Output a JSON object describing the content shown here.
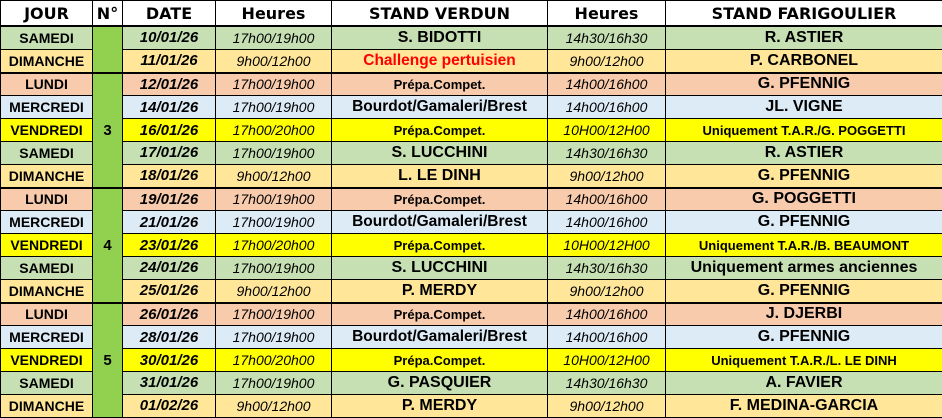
{
  "headers": [
    "JOUR",
    "N°",
    "DATE",
    "Heures",
    "STAND VERDUN",
    "Heures",
    "STAND FARIGOULIER"
  ],
  "colors": {
    "SAMEDI": "#c6e0b4",
    "DIMANCHE": "#ffe699",
    "LUNDI": "#f8cbad",
    "MERCREDI": "#ddebf7",
    "VENDREDI": "#ffff00",
    "week_cell": "#92d050",
    "highlight_text": "#ff0000"
  },
  "weeks": [
    {
      "number": "",
      "rows": 2
    },
    {
      "number": "3",
      "rows": 5
    },
    {
      "number": "4",
      "rows": 5
    },
    {
      "number": "5",
      "rows": 5
    }
  ],
  "rows": [
    {
      "jour": "SAMEDI",
      "date": "10/01/26",
      "h1": "17h00/19h00",
      "verdun": "S. BIDOTTI",
      "h2": "14h30/16h30",
      "farigoulier": "R. ASTIER"
    },
    {
      "jour": "DIMANCHE",
      "date": "11/01/26",
      "h1": "9h00/12h00",
      "verdun": "Challenge pertuisien",
      "verdun_red": true,
      "h2": "9h00/12h00",
      "farigoulier": "P. CARBONEL"
    },
    {
      "jour": "LUNDI",
      "date": "12/01/26",
      "h1": "17h00/19h00",
      "verdun": "Prépa.Compet.",
      "h2": "14h00/16h00",
      "farigoulier": "G. PFENNIG"
    },
    {
      "jour": "MERCREDI",
      "date": "14/01/26",
      "h1": "17h00/19h00",
      "verdun": "Bourdot/Gamaleri/Brest",
      "h2": "14h00/16h00",
      "farigoulier": "JL. VIGNE"
    },
    {
      "jour": "VENDREDI",
      "date": "16/01/26",
      "h1": "17h00/20h00",
      "verdun": "Prépa.Compet.",
      "h2": "10H00/12H00",
      "farigoulier": "Uniquement T.A.R./G. POGGETTI"
    },
    {
      "jour": "SAMEDI",
      "date": "17/01/26",
      "h1": "17h00/19h00",
      "verdun": "S. LUCCHINI",
      "h2": "14h30/16h30",
      "farigoulier": "R. ASTIER"
    },
    {
      "jour": "DIMANCHE",
      "date": "18/01/26",
      "h1": "9h00/12h00",
      "verdun": "L. LE DINH",
      "h2": "9h00/12h00",
      "farigoulier": "G. PFENNIG"
    },
    {
      "jour": "LUNDI",
      "date": "19/01/26",
      "h1": "17h00/19h00",
      "verdun": "Prépa.Compet.",
      "h2": "14h00/16h00",
      "farigoulier": "G. POGGETTI"
    },
    {
      "jour": "MERCREDI",
      "date": "21/01/26",
      "h1": "17h00/19h00",
      "verdun": "Bourdot/Gamaleri/Brest",
      "h2": "14h00/16h00",
      "farigoulier": "G. PFENNIG"
    },
    {
      "jour": "VENDREDI",
      "date": "23/01/26",
      "h1": "17h00/20h00",
      "verdun": "Prépa.Compet.",
      "h2": "10H00/12H00",
      "farigoulier": "Uniquement T.A.R./B. BEAUMONT"
    },
    {
      "jour": "SAMEDI",
      "date": "24/01/26",
      "h1": "17h00/19h00",
      "verdun": "S. LUCCHINI",
      "h2": "14h30/16h30",
      "farigoulier": "Uniquement armes anciennes"
    },
    {
      "jour": "DIMANCHE",
      "date": "25/01/26",
      "h1": "9h00/12h00",
      "verdun": "P. MERDY",
      "h2": "9h00/12h00",
      "farigoulier": "G. PFENNIG"
    },
    {
      "jour": "LUNDI",
      "date": "26/01/26",
      "h1": "17h00/19h00",
      "verdun": "Prépa.Compet.",
      "h2": "14h00/16h00",
      "farigoulier": "J. DJERBI"
    },
    {
      "jour": "MERCREDI",
      "date": "28/01/26",
      "h1": "17h00/19h00",
      "verdun": "Bourdot/Gamaleri/Brest",
      "h2": "14h00/16h00",
      "farigoulier": "G. PFENNIG"
    },
    {
      "jour": "VENDREDI",
      "date": "30/01/26",
      "h1": "17h00/20h00",
      "verdun": "Prépa.Compet.",
      "h2": "10H00/12H00",
      "farigoulier": "Uniquement T.A.R./L. LE DINH"
    },
    {
      "jour": "SAMEDI",
      "date": "31/01/26",
      "h1": "17h00/19h00",
      "verdun": "G. PASQUIER",
      "h2": "14h30/16h30",
      "farigoulier": "A. FAVIER"
    },
    {
      "jour": "DIMANCHE",
      "date": "01/02/26",
      "h1": "9h00/12h00",
      "verdun": "P. MERDY",
      "h2": "9h00/12h00",
      "farigoulier": "F. MEDINA-GARCIA"
    }
  ]
}
